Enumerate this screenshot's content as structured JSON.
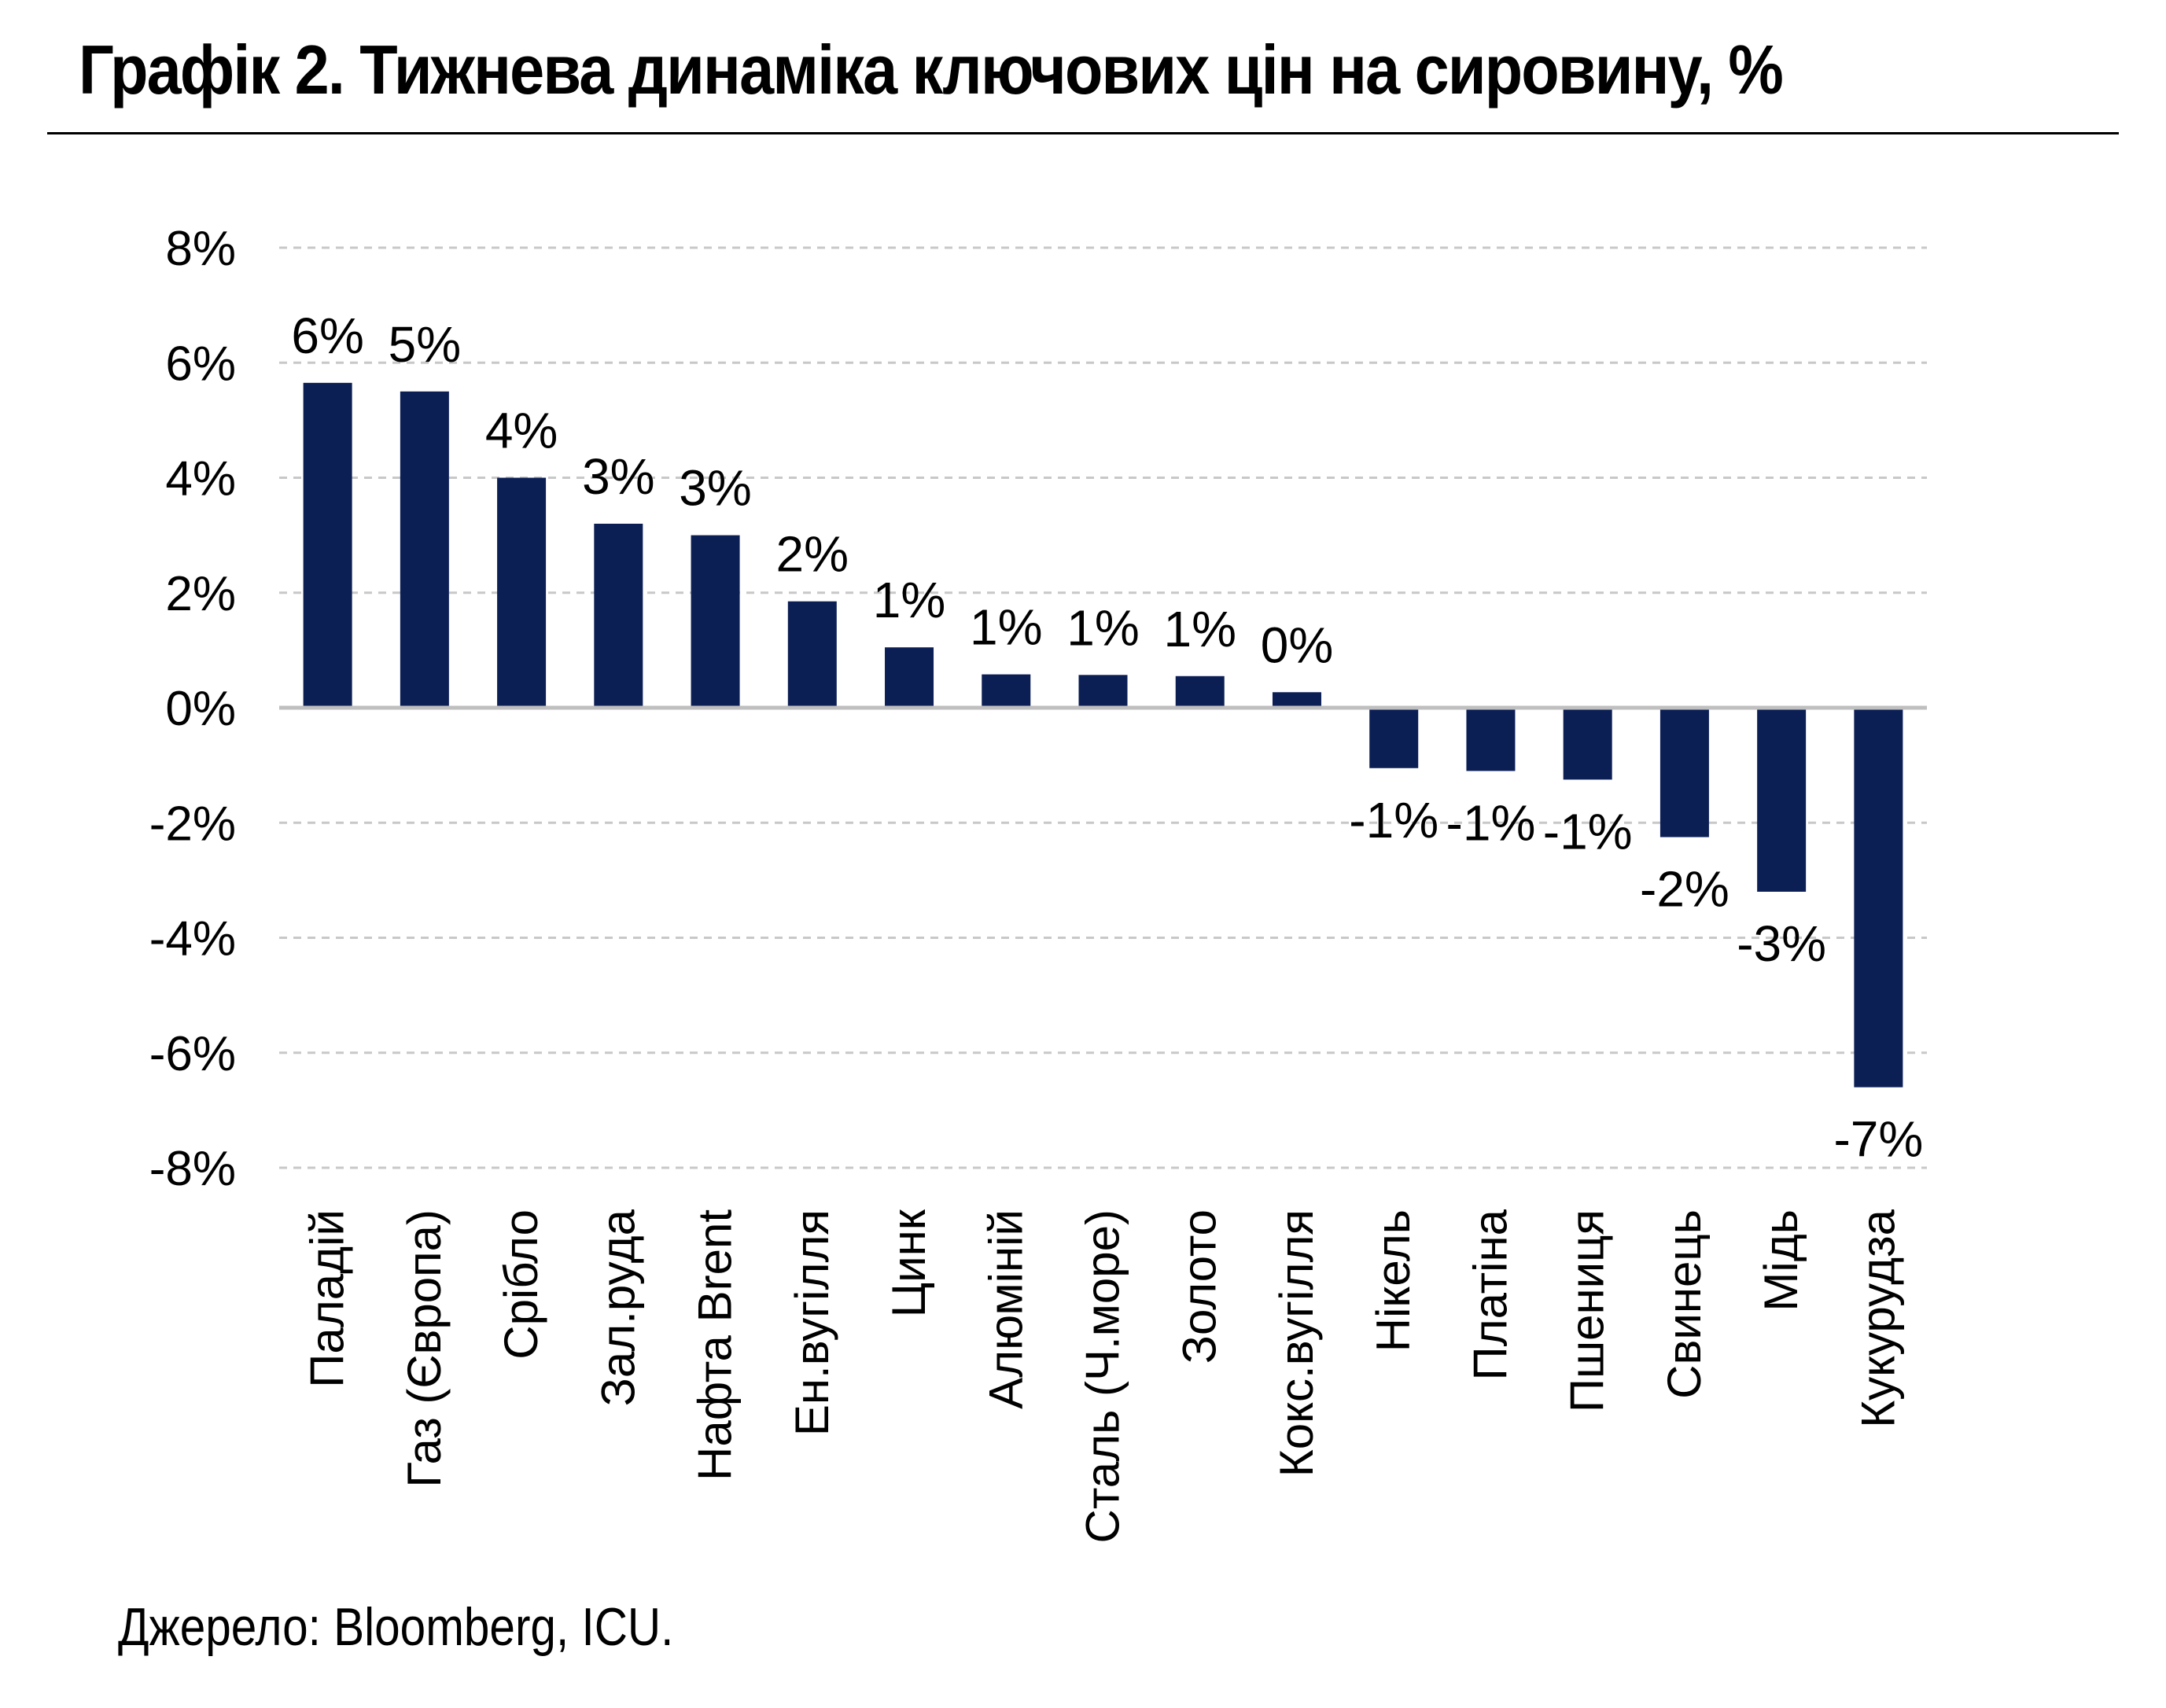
{
  "title": "Графік 2. Тижнева динаміка ключових цін на сировину, %",
  "source": "Джерело: Bloomberg, ICU.",
  "chart_data": {
    "type": "bar",
    "title": "Графік 2. Тижнева динаміка ключових цін на сировину, %",
    "xlabel": "",
    "ylabel": "",
    "ylim": [
      -8,
      8
    ],
    "yticks": [
      8,
      6,
      4,
      2,
      0,
      -2,
      -4,
      -6,
      -8
    ],
    "ytick_labels": [
      "8%",
      "6%",
      "4%",
      "2%",
      "0%",
      "-2%",
      "-4%",
      "-6%",
      "-8%"
    ],
    "grid": "horizontal dashed",
    "bar_color": "#0c1f55",
    "categories": [
      "Паладій",
      "Газ (Європа)",
      "Срібло",
      "Зал.руда",
      "Нафта Brent",
      "Ен.вугілля",
      "Цинк",
      "Алюміній",
      "Сталь (Ч.море)",
      "Золото",
      "Кокс.вугілля",
      "Нікель",
      "Платіна",
      "Пшениця",
      "Свинець",
      "Мідь",
      "Кукурудза"
    ],
    "values": [
      5.65,
      5.5,
      4.0,
      3.2,
      3.0,
      1.85,
      1.05,
      0.58,
      0.57,
      0.55,
      0.27,
      -1.05,
      -1.1,
      -1.25,
      -2.25,
      -3.2,
      -6.6
    ],
    "data_labels": [
      "6%",
      "5%",
      "4%",
      "3%",
      "3%",
      "2%",
      "1%",
      "1%",
      "1%",
      "1%",
      "0%",
      "-1%",
      "-1%",
      "-1%",
      "-2%",
      "-3%",
      "-7%"
    ]
  }
}
